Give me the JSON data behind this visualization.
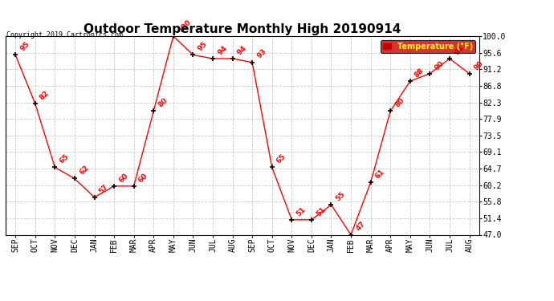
{
  "title": "Outdoor Temperature Monthly High 20190914",
  "copyright": "Copyright 2019 Cartronics.com",
  "legend_label": "Temperature (°F)",
  "x_labels": [
    "SEP",
    "OCT",
    "NOV",
    "DEC",
    "JAN",
    "FEB",
    "MAR",
    "APR",
    "MAY",
    "JUN",
    "JUL",
    "AUG",
    "SEP",
    "OCT",
    "NOV",
    "DEC",
    "JAN",
    "FEB",
    "MAR",
    "APR",
    "MAY",
    "JUN",
    "JUL",
    "AUG"
  ],
  "y_values": [
    95,
    82,
    65,
    62,
    57,
    60,
    60,
    80,
    100,
    95,
    94,
    94,
    93,
    65,
    51,
    51,
    55,
    47,
    61,
    80,
    88,
    90,
    94,
    90
  ],
  "y_min": 47.0,
  "y_max": 100.0,
  "y_ticks": [
    47.0,
    51.4,
    55.8,
    60.2,
    64.7,
    69.1,
    73.5,
    77.9,
    82.3,
    86.8,
    91.2,
    95.6,
    100.0
  ],
  "line_color": "red",
  "marker_color": "black",
  "marker": "+",
  "data_label_color": "red",
  "title_fontsize": 11,
  "copyright_fontsize": 6,
  "tick_fontsize": 7,
  "data_label_fontsize": 6.5,
  "background_color": "#ffffff",
  "grid_color": "#c8c8c8",
  "legend_bg": "#cc0000",
  "legend_text_color": "#ffff00",
  "border_color": "#000000"
}
